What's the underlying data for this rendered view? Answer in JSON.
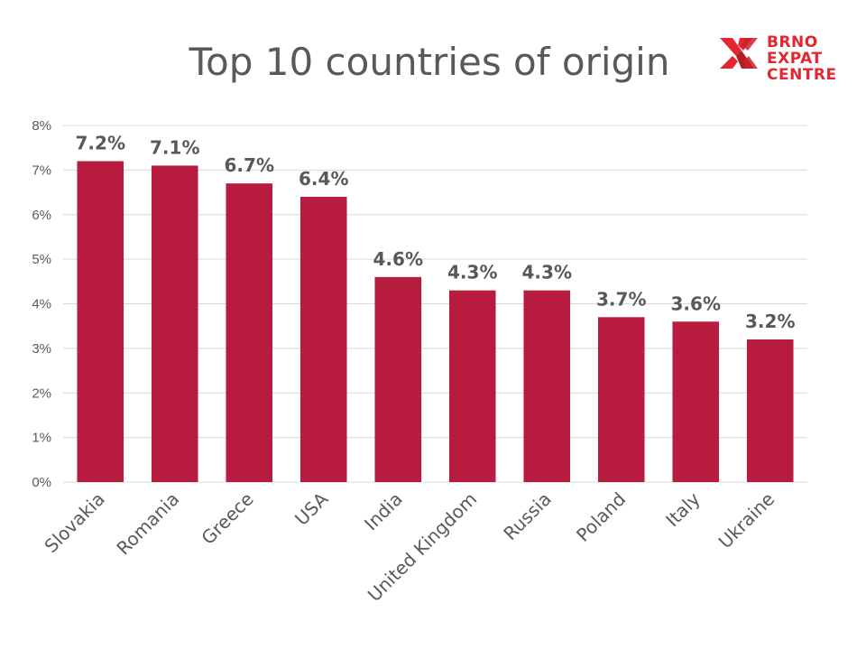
{
  "logo": {
    "name": "brno-expat-centre-logo",
    "lines": [
      "BRNO",
      "EXPAT",
      "CENTRE"
    ],
    "color": "#e5262f"
  },
  "chart_data": {
    "type": "bar",
    "title": "Top 10 countries of origin",
    "xlabel": "",
    "ylabel": "",
    "categories": [
      "Slovakia",
      "Romania",
      "Greece",
      "USA",
      "India",
      "United Kingdom",
      "Russia",
      "Poland",
      "Italy",
      "Ukraine"
    ],
    "values": [
      7.2,
      7.1,
      6.7,
      6.4,
      4.6,
      4.3,
      4.3,
      3.7,
      3.6,
      3.2
    ],
    "data_labels": [
      "7.2%",
      "7.1%",
      "6.7%",
      "6.4%",
      "4.6%",
      "4.3%",
      "4.3%",
      "3.7%",
      "3.6%",
      "3.2%"
    ],
    "y_ticks": [
      "0%",
      "1%",
      "2%",
      "3%",
      "4%",
      "5%",
      "6%",
      "7%",
      "8%"
    ],
    "ylim": [
      0,
      8
    ],
    "grid": true,
    "legend": "none",
    "bar_color": "#b71c3f",
    "grid_color": "#d9d9d9"
  }
}
